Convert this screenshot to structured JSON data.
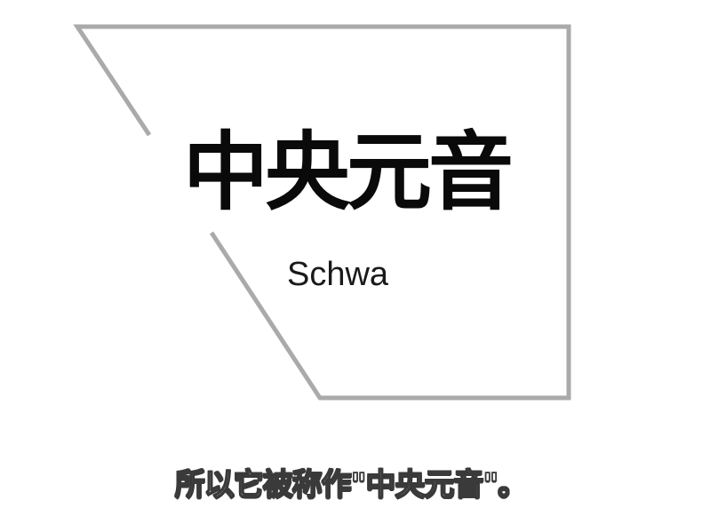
{
  "card": {
    "title": "中央元音",
    "subtitle": "Schwa"
  },
  "subtitle_bar": {
    "text": "所以它被称作\"中央元音\"。"
  },
  "colors": {
    "background": "#ffffff",
    "frame_stroke": "#aaaaaa",
    "title_text": "#0a0a0a",
    "caption_fill": "#ffffff",
    "caption_outline": "#3a3a3a"
  }
}
